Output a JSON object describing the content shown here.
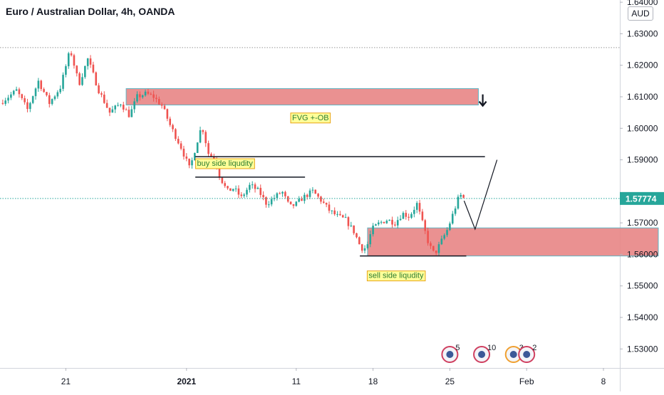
{
  "title": "Euro / Australian Dollar, 4h, OANDA",
  "currency": "AUD",
  "colors": {
    "up": "#26a69a",
    "down": "#ef5350",
    "zone_fill": "#e88585",
    "zone_border": "#5fb5c4",
    "label_bg": "#ffff99",
    "label_border": "#e8a317",
    "label_text": "#2e7d32",
    "last_price_badge": "#26a69a",
    "dotted_line": "#999999",
    "axis_text": "#131722"
  },
  "chart_data": {
    "type": "candlestick",
    "ylim": [
      1.523,
      1.642
    ],
    "y_ticks": [
      "1.53000",
      "1.54000",
      "1.55000",
      "1.56000",
      "1.57000",
      "1.59000",
      "1.60000",
      "1.61000",
      "1.62000",
      "1.63000",
      "1.64000"
    ],
    "x_tick_labels": [
      {
        "day": 21,
        "label": "21"
      },
      {
        "day": 32,
        "label": "2021"
      },
      {
        "day": 42,
        "label": "11"
      },
      {
        "day": 49,
        "label": "18"
      },
      {
        "day": 56,
        "label": "25"
      },
      {
        "day": 63,
        "label": "Feb"
      },
      {
        "day": 70,
        "label": "8"
      }
    ],
    "last_price": {
      "value": 1.57774,
      "label": "1.57774"
    },
    "previous_high_level": 1.6256,
    "price_path": [
      [
        15.0,
        1.608
      ],
      [
        16.5,
        1.612
      ],
      [
        17.5,
        1.606
      ],
      [
        18.5,
        1.615
      ],
      [
        19.5,
        1.608
      ],
      [
        20.5,
        1.613
      ],
      [
        21.4,
        1.625
      ],
      [
        22.2,
        1.614
      ],
      [
        23.0,
        1.622
      ],
      [
        24.0,
        1.612
      ],
      [
        25.0,
        1.605
      ],
      [
        26.0,
        1.608
      ],
      [
        26.8,
        1.604
      ],
      [
        27.5,
        1.61
      ],
      [
        28.3,
        1.611
      ],
      [
        29.0,
        1.61
      ],
      [
        29.8,
        1.607
      ],
      [
        30.5,
        1.601
      ],
      [
        31.5,
        1.594
      ],
      [
        32.3,
        1.587
      ],
      [
        32.9,
        1.595
      ],
      [
        33.4,
        1.601
      ],
      [
        34.0,
        1.592
      ],
      [
        34.6,
        1.59
      ],
      [
        35.0,
        1.585
      ],
      [
        35.7,
        1.58
      ],
      [
        36.3,
        1.581
      ],
      [
        37.0,
        1.578
      ],
      [
        37.8,
        1.582
      ],
      [
        38.6,
        1.58
      ],
      [
        39.3,
        1.576
      ],
      [
        40.0,
        1.578
      ],
      [
        40.7,
        1.58
      ],
      [
        41.4,
        1.575
      ],
      [
        42.0,
        1.576
      ],
      [
        42.6,
        1.578
      ],
      [
        43.5,
        1.58
      ],
      [
        44.3,
        1.577
      ],
      [
        45.0,
        1.574
      ],
      [
        45.8,
        1.572
      ],
      [
        46.5,
        1.571
      ],
      [
        47.3,
        1.567
      ],
      [
        47.9,
        1.562
      ],
      [
        48.4,
        1.562
      ],
      [
        48.9,
        1.568
      ],
      [
        49.6,
        1.57
      ],
      [
        50.3,
        1.571
      ],
      [
        51.0,
        1.57
      ],
      [
        51.7,
        1.573
      ],
      [
        52.3,
        1.572
      ],
      [
        53.0,
        1.576
      ],
      [
        53.5,
        1.57
      ],
      [
        54.1,
        1.563
      ],
      [
        54.6,
        1.56
      ],
      [
        55.2,
        1.564
      ],
      [
        55.8,
        1.568
      ],
      [
        56.3,
        1.573
      ],
      [
        56.9,
        1.579
      ],
      [
        57.3,
        1.5777
      ]
    ],
    "zones": [
      {
        "name": "upper-zone",
        "x0": 26.5,
        "x1": 58.6,
        "y_top": 1.6126,
        "y_bottom": 1.6074
      },
      {
        "name": "lower-zone",
        "x0": 48.5,
        "x1": 75.0,
        "y_top": 1.5684,
        "y_bottom": 1.5595
      }
    ],
    "lines": [
      {
        "name": "buy-side-level",
        "x0": 32.8,
        "x1": 42.8,
        "y": 1.5845
      },
      {
        "name": "upper-level",
        "x0": 32.8,
        "x1": 59.2,
        "y": 1.591
      },
      {
        "name": "sell-side-level",
        "x0": 47.8,
        "x1": 57.5,
        "y": 1.5595
      }
    ],
    "projection": [
      [
        57.3,
        1.577
      ],
      [
        58.3,
        1.568
      ],
      [
        60.3,
        1.59
      ]
    ],
    "arrow": {
      "x": 59.0,
      "y": 1.6085,
      "direction": "down"
    },
    "annotations": [
      {
        "name": "fvg-label",
        "text": "FVG +-OB",
        "x": 43.3,
        "y": 1.6035
      },
      {
        "name": "buy-side-label",
        "text": "buy side liqudity",
        "x": 35.5,
        "y": 1.589
      },
      {
        "name": "sell-side-label",
        "text": "sell side liqudity",
        "x": 51.1,
        "y": 1.5534
      }
    ],
    "events": [
      {
        "label": "5",
        "x": 56.0
      },
      {
        "label": "10",
        "x": 58.9
      },
      {
        "label": "3",
        "x": 61.8
      },
      {
        "label": "2",
        "x": 63.0
      }
    ]
  }
}
